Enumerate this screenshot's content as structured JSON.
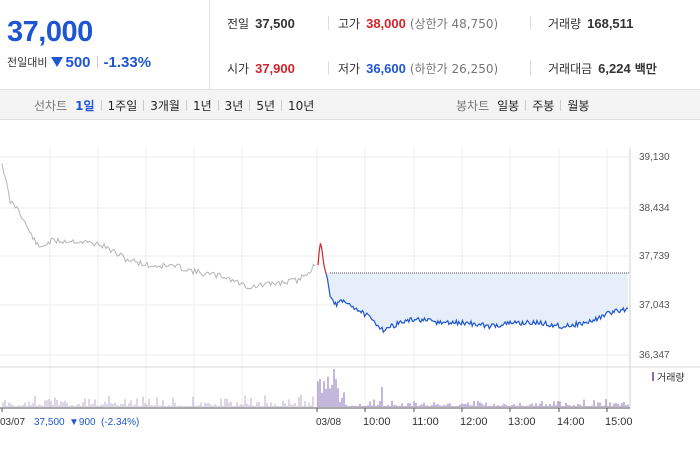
{
  "summary": {
    "current_price": "37,000",
    "change_label": "전일대비",
    "change_amount": "500",
    "change_rate": "-1.33%",
    "prev_close_label": "전일",
    "prev_close": "37,500",
    "high_label": "고가",
    "high": "38,000",
    "upper_limit": "(상한가 48,750)",
    "volume_label": "거래량",
    "volume": "168,511",
    "open_label": "시가",
    "open": "37,900",
    "low_label": "저가",
    "low": "36,600",
    "lower_limit": "(하한가 26,250)",
    "amount_label": "거래대금",
    "amount": "6,224",
    "amount_unit": "백만"
  },
  "toolbar": {
    "line_chart_label": "선차트",
    "line_periods": [
      "1일",
      "1주일",
      "3개월",
      "1년",
      "3년",
      "5년",
      "10년"
    ],
    "candle_chart_label": "봉차트",
    "candle_periods": [
      "일봉",
      "주봉",
      "월봉"
    ]
  },
  "colors": {
    "accent_blue": "#1e56d2",
    "up_red": "#d2232a",
    "prev_day_gray": "#b4b4b4",
    "volume_purple": "#8a6fb8",
    "fill_blue": "#e6eef9"
  },
  "chart_data": {
    "type": "line",
    "y_ticks": [
      "39,130",
      "38,434",
      "37,739",
      "37,043",
      "36,347"
    ],
    "y_tick_values": [
      39130,
      38434,
      37739,
      37043,
      36347
    ],
    "x_ticks": [
      "03/07",
      "03/08",
      "10:00",
      "11:00",
      "12:00",
      "13:00",
      "14:00",
      "15:00"
    ],
    "prev_day_caption": {
      "date": "03/07",
      "price": "37,500",
      "change": "▼900",
      "rate": "(-2.34%)"
    },
    "volume_legend": "거래량",
    "reference_price": 37500,
    "series": [
      {
        "x": [
          "03/07 09:00",
          "03/07 09:10",
          "03/07 09:20",
          "03/07 09:30",
          "03/07 09:45",
          "03/07 10:00",
          "03/07 10:30",
          "03/07 11:00",
          "03/07 11:30",
          "03/07 12:00",
          "03/07 12:30",
          "03/07 13:00",
          "03/07 13:30",
          "03/07 14:00",
          "03/07 14:30",
          "03/07 15:00",
          "03/07 15:20"
        ],
        "values": [
          39050,
          38500,
          38400,
          38150,
          37850,
          37950,
          37950,
          37900,
          37700,
          37600,
          37600,
          37500,
          37450,
          37300,
          37350,
          37400,
          37600
        ]
      },
      {
        "x": [
          "03/08 09:00",
          "03/08 09:03",
          "03/08 09:06",
          "03/08 09:10",
          "03/08 09:15",
          "03/08 09:20",
          "03/08 09:30",
          "03/08 09:40",
          "03/08 10:00",
          "03/08 10:20",
          "03/08 10:40",
          "03/08 11:00",
          "03/08 11:30",
          "03/08 12:00",
          "03/08 12:30",
          "03/08 13:00",
          "03/08 13:30",
          "03/08 14:00",
          "03/08 14:30",
          "03/08 15:00",
          "03/08 15:20"
        ],
        "values": [
          37600,
          37950,
          37700,
          37500,
          37200,
          37050,
          37100,
          37050,
          36900,
          36700,
          36800,
          36850,
          36800,
          36800,
          36750,
          36800,
          36800,
          36750,
          36800,
          36950,
          37000
        ]
      }
    ]
  }
}
